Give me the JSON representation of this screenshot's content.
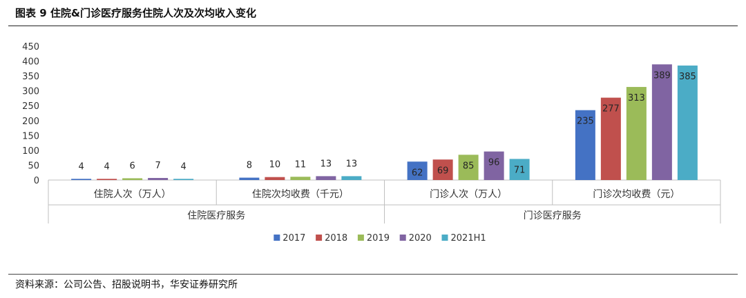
{
  "header": {
    "title": "图表 9 住院&门诊医疗服务住院人次及次均收入变化"
  },
  "footer": {
    "source": "资料来源：公司公告、招股说明书，华安证券研究所"
  },
  "colors": {
    "2017": "#4472c4",
    "2018": "#c0504d",
    "2019": "#9bbb59",
    "2020": "#8064a2",
    "2021H1": "#4bacc6"
  },
  "chart_data": {
    "type": "bar",
    "title": "",
    "xlabel": "",
    "ylabel": "",
    "ylim": [
      0,
      450
    ],
    "yticks": [
      0,
      50,
      100,
      150,
      200,
      250,
      300,
      350,
      400,
      450
    ],
    "grid": false,
    "legend_position": "bottom",
    "groups": [
      {
        "label": "住院医疗服务",
        "categories": [
          "住院人次（万人）",
          "住院次均收费（千元）"
        ]
      },
      {
        "label": "门诊医疗服务",
        "categories": [
          "门诊人次（万人）",
          "门诊次均收费（元）"
        ]
      }
    ],
    "categories": [
      "住院人次（万人）",
      "住院次均收费（千元）",
      "门诊人次（万人）",
      "门诊次均收费（元）"
    ],
    "series": [
      {
        "name": "2017",
        "values": [
          4,
          8,
          62,
          235
        ]
      },
      {
        "name": "2018",
        "values": [
          4,
          10,
          69,
          277
        ]
      },
      {
        "name": "2019",
        "values": [
          6,
          11,
          85,
          313
        ]
      },
      {
        "name": "2020",
        "values": [
          7,
          13,
          96,
          389
        ]
      },
      {
        "name": "2021H1",
        "values": [
          4,
          13,
          71,
          385
        ]
      }
    ]
  }
}
